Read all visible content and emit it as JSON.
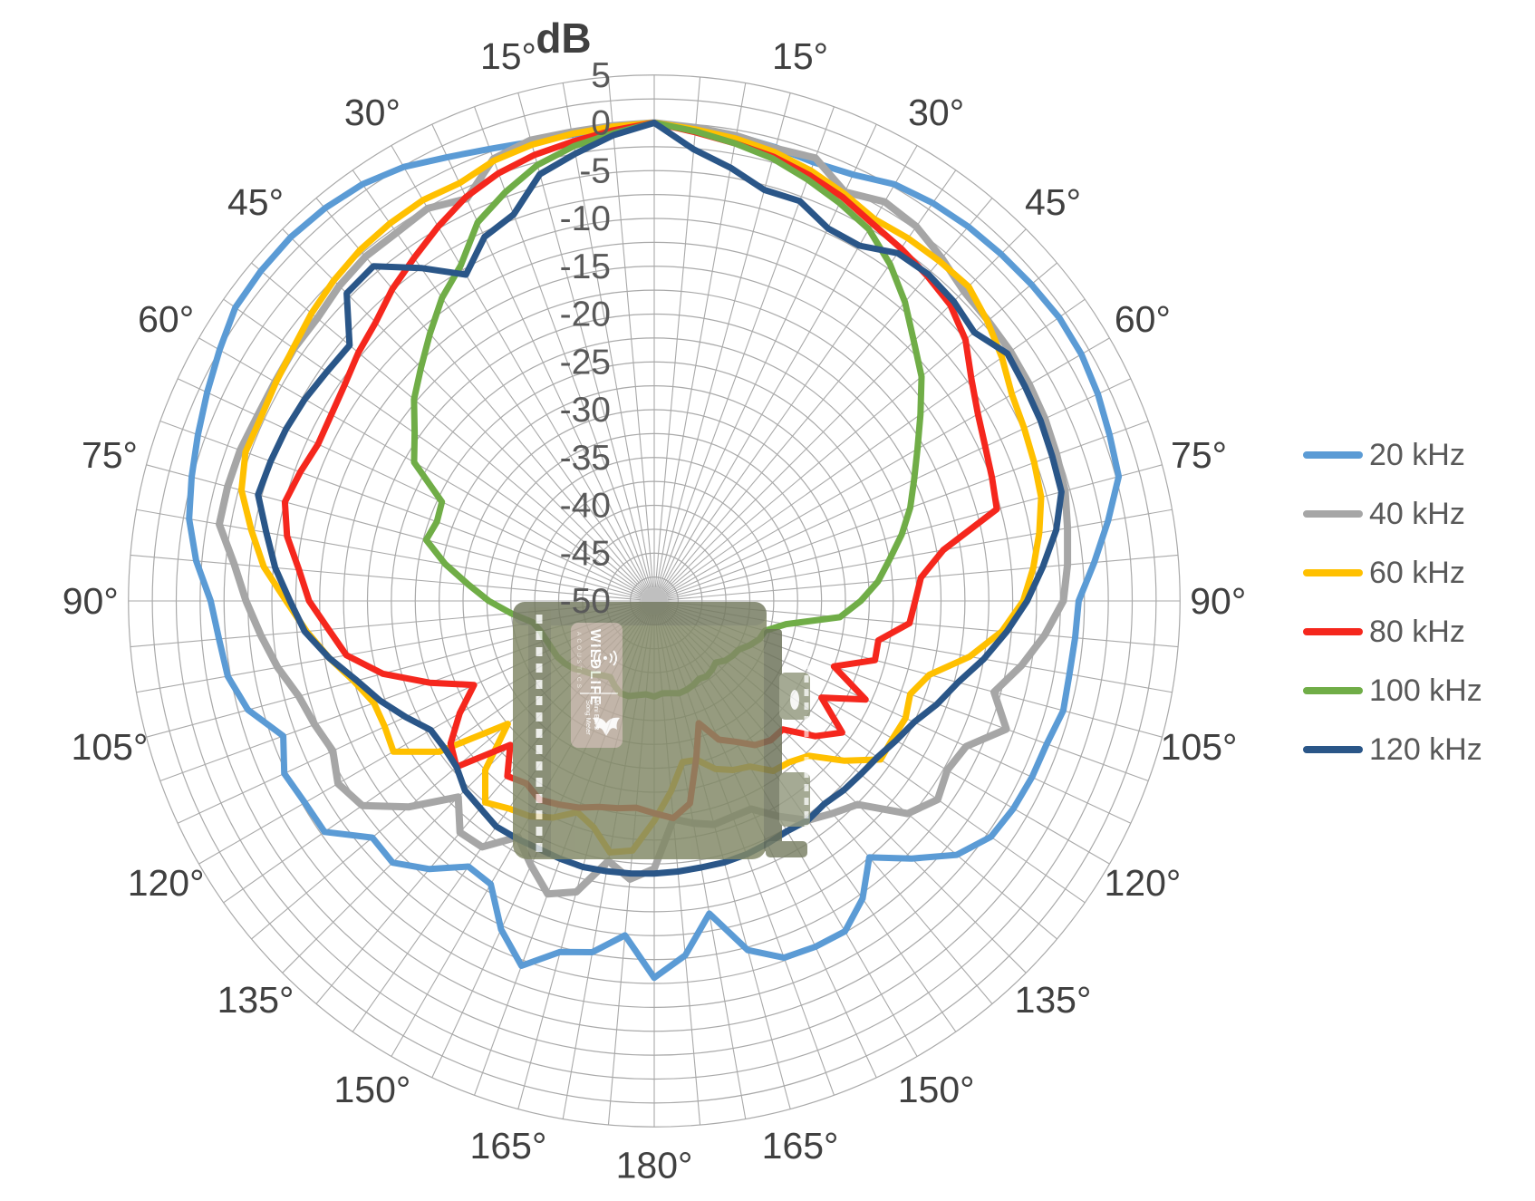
{
  "title": {
    "text": "dB"
  },
  "chart_data": {
    "type": "line",
    "subtype": "polar-directivity-radar",
    "units": {
      "radial": "dB",
      "angular": "degrees"
    },
    "zero_angle_location": "top",
    "angle_start": -180,
    "angle_end": 180,
    "angle_step": 5,
    "radial_axis": {
      "min": -50,
      "max": 5,
      "ring_step": 2.5,
      "label_step": 5,
      "tick_labels": [
        "5",
        "0",
        "-5",
        "-10",
        "-15",
        "-20",
        "-25",
        "-30",
        "-35",
        "-40",
        "-45",
        "-50"
      ]
    },
    "angle_tick_labels": [
      "15°",
      "30°",
      "45°",
      "60°",
      "75°",
      "90°",
      "105°",
      "120°",
      "135°",
      "150°",
      "165°",
      "180°"
    ],
    "grid": true,
    "legend_position": "right",
    "series": [
      {
        "name": "20 kHz",
        "color": "#5B9BD5",
        "values": [
          -10.6,
          -14.9,
          -12.7,
          -12.0,
          -9.4,
          -12.1,
          -15.8,
          -16.1,
          -13.4,
          -11.3,
          -11.5,
          -7.9,
          -7.8,
          -7.3,
          -8.7,
          -6.0,
          -4.7,
          -4.3,
          -3.6,
          -1.9,
          -0.6,
          0.1,
          0.8,
          1.6,
          2.5,
          3.5,
          3.7,
          3.8,
          3.6,
          3.2,
          2.4,
          1.2,
          0.3,
          -0.3,
          -0.5,
          -0.3,
          0.0,
          -0.3,
          -0.6,
          -0.9,
          -1.2,
          -0.8,
          0.3,
          0.8,
          1.1,
          1.3,
          1.5,
          1.7,
          1.6,
          1.2,
          0.7,
          0.3,
          -1.8,
          -3.8,
          -5.6,
          -5.8,
          -5.9,
          -5.7,
          -6.3,
          -6.4,
          -6.6,
          -7.0,
          -8.7,
          -11.9,
          -15.0,
          -12.0,
          -10.1,
          -10.1,
          -10.3,
          -12.2,
          -16.8,
          -12.8,
          -10.6
        ]
      },
      {
        "name": "40 kHz",
        "color": "#A6A6A6",
        "values": [
          -22.0,
          -20.8,
          -22.4,
          -18.5,
          -17.4,
          -19.5,
          -21.5,
          -18.6,
          -18.4,
          -21.0,
          -16.5,
          -12.7,
          -11.8,
          -12.9,
          -12.2,
          -11.5,
          -10.0,
          -8.7,
          -7.3,
          -5.9,
          -3.8,
          -3.8,
          -3.9,
          -4.2,
          -4.2,
          -4.0,
          -4.0,
          -3.4,
          -3.0,
          -3.0,
          -2.6,
          -3.6,
          -0.8,
          -0.1,
          -0.2,
          -0.1,
          0.0,
          -0.3,
          -0.6,
          -1.0,
          -0.7,
          -2.8,
          -1.8,
          -2.2,
          -3.2,
          -4.2,
          -4.4,
          -4.5,
          -4.7,
          -4.9,
          -5.2,
          -5.5,
          -6.1,
          -6.6,
          -7.2,
          -9.0,
          -11.0,
          -13.2,
          -10.8,
          -14.0,
          -14.6,
          -13.8,
          -15.4,
          -19.9,
          -21.0,
          -22.0,
          -24.0,
          -26.0,
          -26.0,
          -25.8,
          -26.4,
          -27.1,
          -22.0
        ]
      },
      {
        "name": "60 kHz",
        "color": "#FFC000",
        "values": [
          -27.0,
          -23.8,
          -23.3,
          -25.5,
          -26.5,
          -25.0,
          -24.0,
          -23.5,
          -22.5,
          -25.0,
          -30.0,
          -22.5,
          -18.5,
          -18.9,
          -18.8,
          -17.5,
          -15.5,
          -13.5,
          -11.5,
          -9.0,
          -7.2,
          -5.3,
          -4.5,
          -4.6,
          -4.3,
          -3.9,
          -3.2,
          -2.6,
          -2.1,
          -1.8,
          -1.6,
          -1.8,
          -1.0,
          -0.6,
          -0.4,
          -0.2,
          0.0,
          -0.5,
          -0.9,
          -1.4,
          -2.1,
          -3.0,
          -3.9,
          -3.7,
          -3.6,
          -3.5,
          -4.5,
          -5.6,
          -6.8,
          -7.3,
          -7.7,
          -8.1,
          -9.1,
          -10.2,
          -11.4,
          -13.5,
          -16.5,
          -20.2,
          -21.5,
          -21.0,
          -21.2,
          -21.1,
          -24.0,
          -27.1,
          -28.0,
          -28.3,
          -30.0,
          -30.5,
          -31.3,
          -32.8,
          -32.9,
          -30.0,
          -27.0
        ]
      },
      {
        "name": "80 kHz",
        "color": "#F5271D",
        "values": [
          -27.8,
          -28.3,
          -28.0,
          -27.7,
          -27.0,
          -26.5,
          -26.0,
          -26.7,
          -26.1,
          -28.7,
          -23.0,
          -24.0,
          -26.5,
          -29.2,
          -25.0,
          -20.6,
          -17.3,
          -15.8,
          -13.9,
          -12.7,
          -11.0,
          -10.0,
          -10.6,
          -11.2,
          -11.0,
          -10.5,
          -9.6,
          -8.8,
          -7.4,
          -6.2,
          -4.8,
          -3.4,
          -2.4,
          -1.7,
          -1.2,
          -0.6,
          0.0,
          -0.8,
          -1.4,
          -1.9,
          -2.6,
          -3.4,
          -4.4,
          -5.0,
          -5.6,
          -6.2,
          -7.5,
          -9.5,
          -10.9,
          -11.8,
          -12.4,
          -12.9,
          -19.3,
          -22.0,
          -22.7,
          -23.2,
          -26.2,
          -26.1,
          -30.0,
          -25.6,
          -29.8,
          -26.0,
          -28.0,
          -31.0,
          -31.0,
          -31.6,
          -33.0,
          -34.0,
          -36.4,
          -33.0,
          -28.5,
          -27.2,
          -27.8
        ]
      },
      {
        "name": "100 kHz",
        "color": "#70AD47",
        "values": [
          -40.0,
          -40.2,
          -40.0,
          -39.7,
          -39.7,
          -40.2,
          -40.8,
          -40.5,
          -40.0,
          -39.6,
          -39.0,
          -38.6,
          -38.3,
          -38.2,
          -38.0,
          -37.7,
          -37.1,
          -35.0,
          -32.7,
          -30.5,
          -27.8,
          -25.3,
          -25.8,
          -25.5,
          -21.0,
          -19.4,
          -17.2,
          -15.5,
          -13.5,
          -11.3,
          -9.5,
          -6.3,
          -4.5,
          -2.8,
          -1.7,
          -0.9,
          0.0,
          -0.7,
          -1.4,
          -2.1,
          -3.1,
          -4.1,
          -5.1,
          -7.0,
          -9.2,
          -11.6,
          -13.5,
          -16.0,
          -18.2,
          -20.0,
          -21.5,
          -23.2,
          -25.0,
          -26.5,
          -28.4,
          -30.5,
          -36.0,
          -38.0,
          -38.3,
          -39.0,
          -39.8,
          -40.0,
          -40.3,
          -40.9,
          -40.6,
          -40.4,
          -40.6,
          -40.3,
          -40.1,
          -40.0,
          -40.2,
          -40.3,
          -40.0
        ]
      },
      {
        "name": "120 kHz",
        "color": "#2A5688",
        "values": [
          -21.5,
          -21.4,
          -21.3,
          -21.2,
          -21.3,
          -21.4,
          -21.3,
          -21.2,
          -21.7,
          -22.0,
          -23.0,
          -23.2,
          -23.0,
          -21.3,
          -19.5,
          -17.8,
          -15.5,
          -13.3,
          -11.9,
          -10.2,
          -8.8,
          -7.1,
          -7.3,
          -7.5,
          -7.8,
          -8.2,
          -8.4,
          -4.5,
          -4.3,
          -7.5,
          -10.6,
          -8.0,
          -7.0,
          -3.8,
          -2.5,
          -1.1,
          0.0,
          -2.6,
          -4.0,
          -5.5,
          -5.5,
          -7.0,
          -7.1,
          -5.6,
          -5.4,
          -5.7,
          -6.3,
          -4.9,
          -5.2,
          -5.4,
          -5.7,
          -5.9,
          -7.3,
          -9.2,
          -11.0,
          -13.0,
          -15.0,
          -17.1,
          -18.5,
          -20.0,
          -20.8,
          -21.5,
          -21.8,
          -22.0,
          -22.3,
          -22.0,
          -22.2,
          -22.0,
          -21.8,
          -21.7,
          -21.7,
          -21.6,
          -21.5
        ]
      }
    ]
  },
  "legend": {
    "items": [
      {
        "label": "20 kHz",
        "color": "#5B9BD5"
      },
      {
        "label": "40 kHz",
        "color": "#A6A6A6"
      },
      {
        "label": "60 kHz",
        "color": "#FFC000"
      },
      {
        "label": "80 kHz",
        "color": "#F5271D"
      },
      {
        "label": "100 kHz",
        "color": "#70AD47"
      },
      {
        "label": "120 kHz",
        "color": "#2A5688"
      }
    ]
  },
  "device_overlay": {
    "brand": "WILDLIFE",
    "brand_sub": "ACOUSTICS",
    "product_line1": "Song Meter",
    "product_line2": "Mini Bat 2"
  },
  "colors": {
    "grid": "#A9A9A9",
    "radial_label": "#595959",
    "angle_label": "#404040",
    "title": "#404040",
    "background": "#FFFFFF"
  }
}
